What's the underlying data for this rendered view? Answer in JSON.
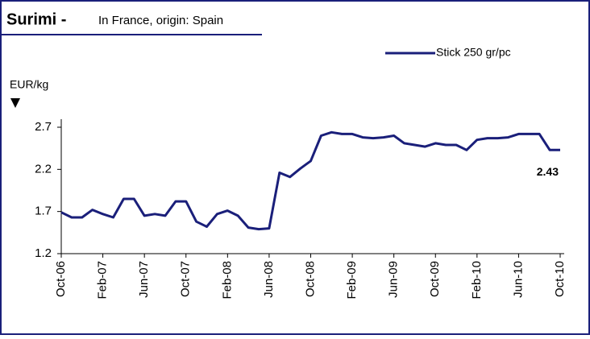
{
  "chart_data": {
    "type": "line",
    "title": "Surimi -",
    "subtitle": "In France, origin: Spain",
    "y_label": "EUR/kg",
    "categories": [
      "Oct-06",
      null,
      null,
      null,
      "Feb-07",
      null,
      null,
      null,
      "Jun-07",
      null,
      null,
      null,
      "Oct-07",
      null,
      null,
      null,
      "Feb-08",
      null,
      null,
      null,
      "Jun-08",
      null,
      null,
      null,
      "Oct-08",
      null,
      null,
      null,
      "Feb-09",
      null,
      null,
      null,
      "Jun-09",
      null,
      null,
      null,
      "Oct-09",
      null,
      null,
      null,
      "Feb-10",
      null,
      null,
      null,
      "Jun-10",
      null,
      null,
      null,
      "Oct-10"
    ],
    "series": [
      {
        "name": "Stick 250 gr/pc",
        "color": "#1a1f7a",
        "values": [
          1.69,
          1.63,
          1.63,
          1.72,
          1.67,
          1.63,
          1.85,
          1.85,
          1.65,
          1.67,
          1.65,
          1.82,
          1.82,
          1.58,
          1.52,
          1.67,
          1.71,
          1.65,
          1.51,
          1.49,
          1.5,
          2.16,
          2.11,
          2.21,
          2.3,
          2.6,
          2.64,
          2.62,
          2.62,
          2.58,
          2.57,
          2.58,
          2.6,
          2.51,
          2.49,
          2.47,
          2.51,
          2.49,
          2.49,
          2.43,
          2.55,
          2.57,
          2.57,
          2.58,
          2.62,
          2.62,
          2.62,
          2.43,
          2.43
        ]
      }
    ],
    "ylim": [
      1.2,
      2.7
    ],
    "yticks": [
      1.2,
      1.7,
      2.2,
      2.7
    ],
    "legend": "top-right",
    "grid": false
  }
}
